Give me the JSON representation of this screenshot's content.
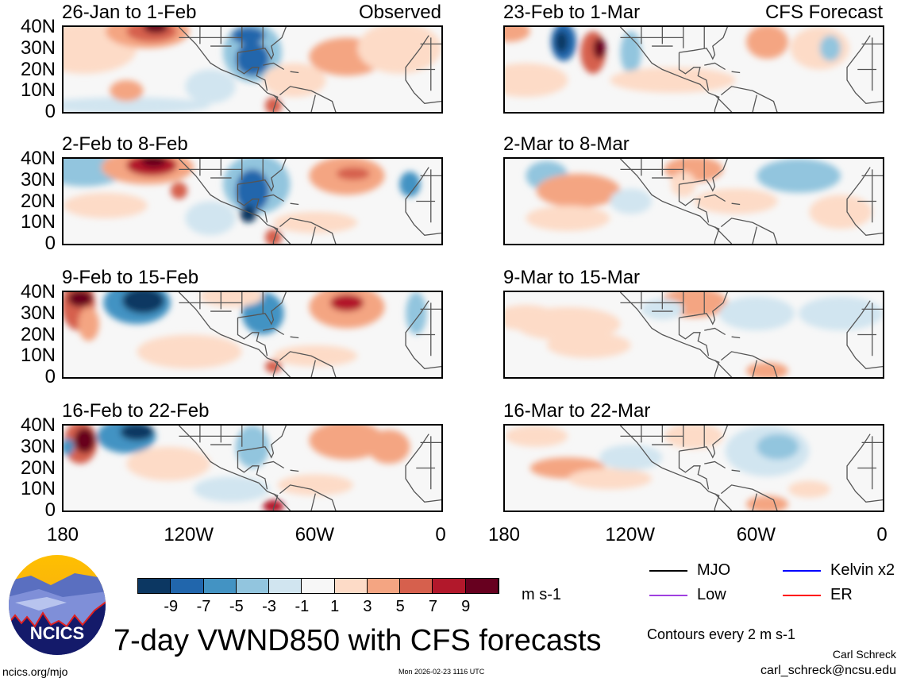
{
  "figure_title": "7-day VWND850 with CFS forecasts",
  "observed_label": "Observed",
  "forecast_label": "CFS Forecast",
  "observed_panels": [
    "26-Jan to 1-Feb",
    "2-Feb to 8-Feb",
    "9-Feb to 15-Feb",
    "16-Feb to 22-Feb"
  ],
  "forecast_panels": [
    "23-Feb to 1-Mar",
    "2-Mar to 8-Mar",
    "9-Mar to 15-Mar",
    "16-Mar to 22-Mar"
  ],
  "lat_labels": [
    "40N",
    "30N",
    "20N",
    "10N",
    "0"
  ],
  "lon_labels": [
    "180",
    "120W",
    "60W",
    "0"
  ],
  "colorbar": {
    "unit": "m s-1",
    "ticks": [
      "-9",
      "-7",
      "-5",
      "-3",
      "-1",
      "1",
      "3",
      "5",
      "7",
      "9"
    ],
    "colors": [
      "#0c3762",
      "#2166ac",
      "#4393c3",
      "#92c5de",
      "#d1e5f0",
      "#f7f7f7",
      "#fddbc7",
      "#f4a582",
      "#d6604d",
      "#b2182b",
      "#67001f"
    ]
  },
  "legend": [
    {
      "label": "MJO",
      "color": "#000000"
    },
    {
      "label": "Kelvin x2",
      "color": "#0000ff"
    },
    {
      "label": "Low",
      "color": "#a040e0"
    },
    {
      "label": "ER",
      "color": "#ff0000"
    }
  ],
  "contours_note": "Contours every 2 m s-1",
  "author": "Carl Schreck",
  "email": "carl_schreck@ncsu.edu",
  "site": "ncics.org/mjo",
  "timestamp": "Mon 2026-02-23 1116 UTC",
  "logo_text": "NCICS"
}
